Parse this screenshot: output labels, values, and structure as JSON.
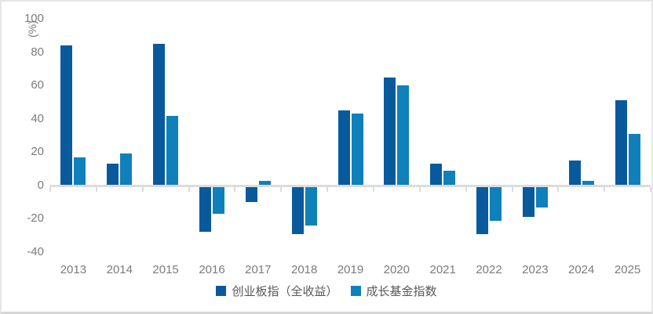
{
  "chart_data": {
    "type": "bar",
    "title": "",
    "y_axis_title": "(%)",
    "categories": [
      "2013",
      "2014",
      "2015",
      "2016",
      "2017",
      "2018",
      "2019",
      "2020",
      "2021",
      "2022",
      "2023",
      "2024",
      "2025"
    ],
    "series": [
      {
        "name": "创业板指（全收益）",
        "color": "#095a9d",
        "values": [
          84,
          13,
          85,
          -28,
          -10,
          -29,
          45,
          65,
          13,
          -29,
          -19,
          15,
          51
        ]
      },
      {
        "name": "成长基金指数",
        "color": "#1080ba",
        "values": [
          17,
          19,
          42,
          -17,
          3,
          -24,
          43,
          60,
          9,
          -21,
          -13,
          3,
          31
        ]
      }
    ],
    "ylim": [
      -40,
      100
    ],
    "yticks": [
      100,
      80,
      60,
      40,
      20,
      0,
      -20,
      -40
    ],
    "grid": false,
    "legend_position": "bottom",
    "axis_color": "#dcdcdc",
    "label_color": "#7b7b7b"
  }
}
